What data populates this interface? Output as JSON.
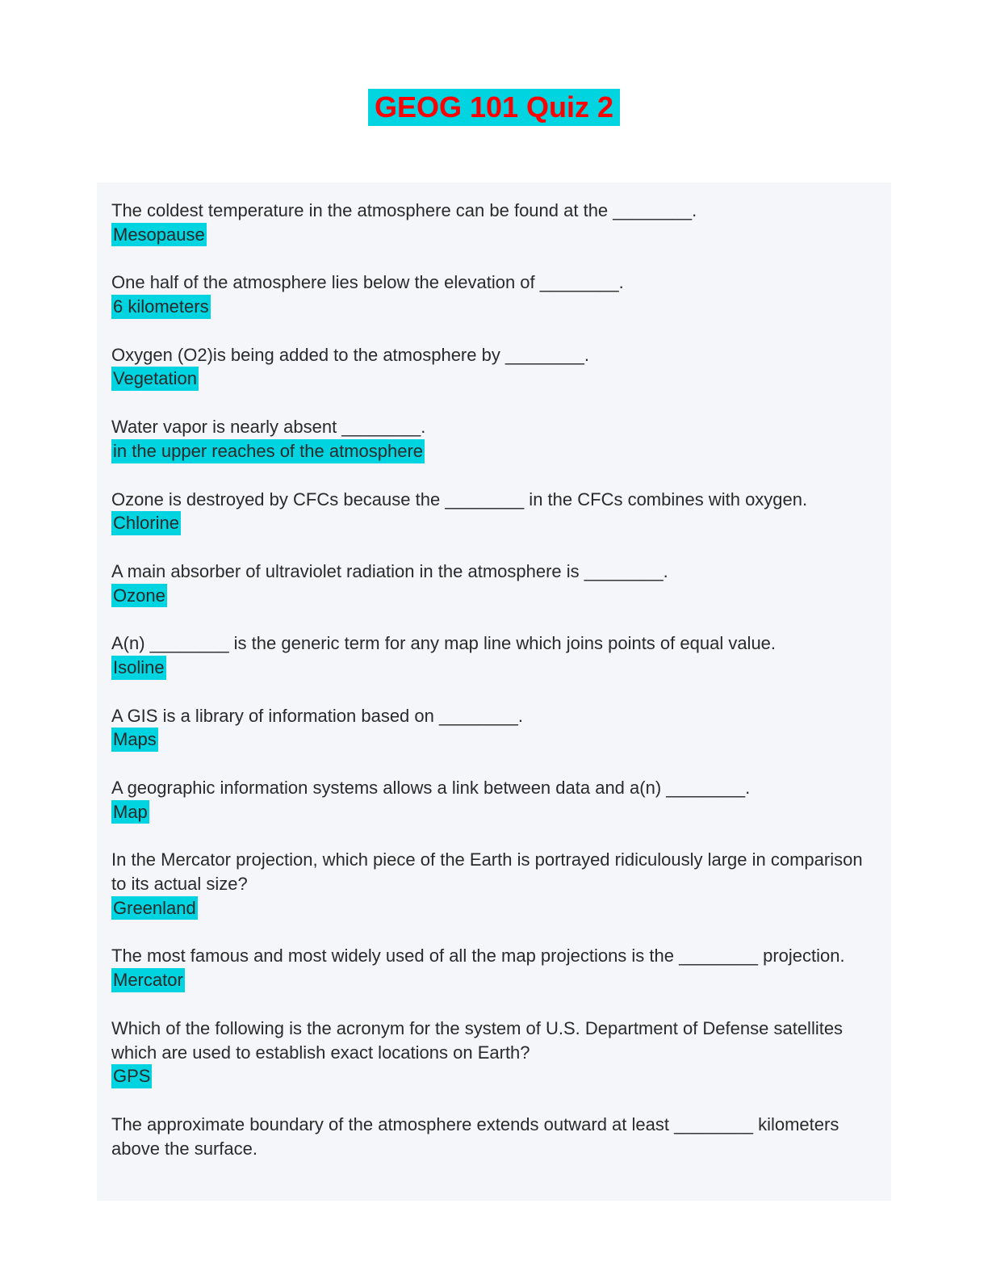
{
  "title": "GEOG 101 Quiz 2",
  "colors": {
    "highlight_bg": "#00d4e0",
    "title_text": "#ff0000",
    "body_text": "#2a2a2a",
    "content_bg": "#f4f6f9",
    "page_bg": "#ffffff"
  },
  "typography": {
    "title_fontsize": 36,
    "body_fontsize": 22,
    "font_family": "Arial"
  },
  "items": [
    {
      "question": "The coldest temperature in the atmosphere can be found at the ________.",
      "answer": "Mesopause"
    },
    {
      "question": "One half of the atmosphere lies below the elevation of ________.",
      "answer": "6 kilometers"
    },
    {
      "question": "Oxygen (O2)is being added to the atmosphere by ________.",
      "answer": "Vegetation"
    },
    {
      "question": "Water vapor is nearly absent ________.",
      "answer": "in the upper reaches of the atmosphere"
    },
    {
      "question": "Ozone is destroyed by CFCs because the ________ in the CFCs combines with oxygen.",
      "answer": "Chlorine"
    },
    {
      "question": "A main absorber of ultraviolet radiation in the atmosphere is ________.",
      "answer": "Ozone"
    },
    {
      "question": "A(n) ________ is the generic term for any map line which joins points of equal value.",
      "answer": "Isoline"
    },
    {
      "question": "A GIS is a library of information based on ________.",
      "answer": "Maps"
    },
    {
      "question": "A geographic information systems allows a link between data and a(n) ________.",
      "answer": "Map"
    },
    {
      "question": "In the Mercator projection, which piece of the Earth is portrayed ridiculously large in comparison to its actual size?",
      "answer": "Greenland"
    },
    {
      "question": "The most famous and most widely used of all the map projections is the ________ projection.",
      "answer": "Mercator"
    },
    {
      "question": "Which of the following is the acronym for the system of U.S. Department of Defense satellites which are used to establish exact locations on Earth?",
      "answer": "GPS"
    },
    {
      "question": "The approximate boundary of the atmosphere extends outward at least ________ kilometers above the surface.",
      "answer": ""
    }
  ]
}
